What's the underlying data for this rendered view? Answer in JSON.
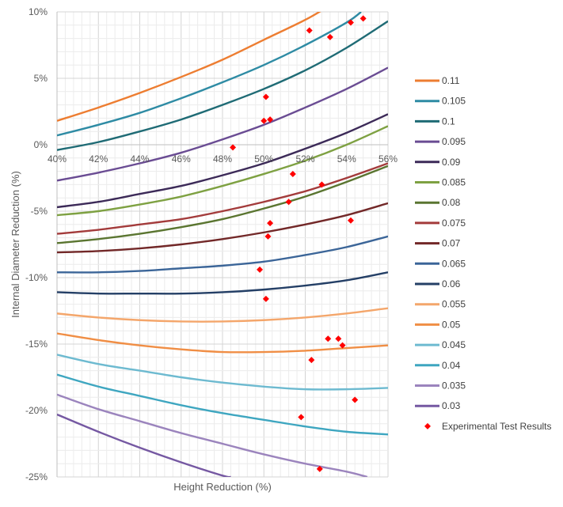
{
  "chart_data": {
    "type": "line",
    "title": "",
    "xlabel": "Height Reduction (%)",
    "ylabel": "Internal Diameter Reduction (%)",
    "xlim": [
      40,
      56
    ],
    "ylim": [
      -25,
      10
    ],
    "x_ticks": [
      "40%",
      "42%",
      "44%",
      "46%",
      "48%",
      "50%",
      "52%",
      "54%",
      "56%"
    ],
    "x_tick_values": [
      40,
      42,
      44,
      46,
      48,
      50,
      52,
      54,
      56
    ],
    "y_ticks": [
      "10%",
      "5%",
      "0%",
      "-5%",
      "-10%",
      "-15%",
      "-20%",
      "-25%"
    ],
    "y_tick_values": [
      10,
      5,
      0,
      -5,
      -10,
      -15,
      -20,
      -25
    ],
    "grid": true,
    "legend_position": "right",
    "series": [
      {
        "name": "0.11",
        "color": "#ED7D31",
        "x": [
          40,
          42,
          44,
          46,
          48,
          50,
          52,
          53.0
        ],
        "y": [
          1.8,
          2.8,
          3.9,
          5.1,
          6.4,
          7.9,
          9.4,
          10.3
        ]
      },
      {
        "name": "0.105",
        "color": "#2E8BA4",
        "x": [
          40,
          42,
          44,
          46,
          48,
          50,
          52,
          54,
          54.7
        ],
        "y": [
          0.7,
          1.5,
          2.4,
          3.5,
          4.7,
          6.0,
          7.5,
          9.2,
          10.0
        ]
      },
      {
        "name": "0.1",
        "color": "#1F6B75",
        "x": [
          40,
          42,
          44,
          46,
          48,
          50,
          52,
          54,
          56
        ],
        "y": [
          -0.4,
          0.2,
          1.0,
          1.9,
          3.0,
          4.2,
          5.6,
          7.3,
          9.3
        ]
      },
      {
        "name": "0.095",
        "color": "#6A4C93",
        "x": [
          40,
          42,
          44,
          46,
          48,
          50,
          52,
          54,
          56
        ],
        "y": [
          -2.7,
          -2.1,
          -1.4,
          -0.6,
          0.4,
          1.5,
          2.8,
          4.2,
          5.8
        ]
      },
      {
        "name": "0.09",
        "color": "#3C2A58",
        "x": [
          40,
          42,
          44,
          46,
          48,
          50,
          52,
          54,
          56
        ],
        "y": [
          -4.7,
          -4.3,
          -3.7,
          -3.1,
          -2.3,
          -1.4,
          -0.3,
          0.9,
          2.3
        ]
      },
      {
        "name": "0.085",
        "color": "#7EA142",
        "x": [
          40,
          42,
          44,
          46,
          48,
          50,
          52,
          54,
          56
        ],
        "y": [
          -5.3,
          -5.0,
          -4.5,
          -3.9,
          -3.1,
          -2.2,
          -1.2,
          0.0,
          1.4
        ]
      },
      {
        "name": "0.08",
        "color": "#5A7530",
        "x": [
          40,
          42,
          44,
          46,
          48,
          50,
          52,
          54,
          56
        ],
        "y": [
          -7.4,
          -7.1,
          -6.7,
          -6.2,
          -5.6,
          -4.8,
          -3.9,
          -2.8,
          -1.6
        ]
      },
      {
        "name": "0.075",
        "color": "#A33B3B",
        "x": [
          40,
          42,
          44,
          46,
          48,
          50,
          52,
          54,
          56
        ],
        "y": [
          -6.7,
          -6.4,
          -6.0,
          -5.6,
          -5.0,
          -4.3,
          -3.5,
          -2.5,
          -1.4
        ]
      },
      {
        "name": "0.07",
        "color": "#722828",
        "x": [
          40,
          42,
          44,
          46,
          48,
          50,
          52,
          54,
          56
        ],
        "y": [
          -8.1,
          -8.0,
          -7.8,
          -7.5,
          -7.1,
          -6.6,
          -6.0,
          -5.3,
          -4.4
        ]
      },
      {
        "name": "0.065",
        "color": "#3B6598",
        "x": [
          40,
          42,
          44,
          46,
          48,
          50,
          52,
          54,
          56
        ],
        "y": [
          -9.6,
          -9.6,
          -9.5,
          -9.3,
          -9.1,
          -8.8,
          -8.3,
          -7.7,
          -6.9
        ]
      },
      {
        "name": "0.06",
        "color": "#243F66",
        "x": [
          40,
          42,
          44,
          46,
          48,
          50,
          52,
          54,
          56
        ],
        "y": [
          -11.1,
          -11.2,
          -11.2,
          -11.2,
          -11.1,
          -10.9,
          -10.6,
          -10.2,
          -9.6
        ]
      },
      {
        "name": "0.055",
        "color": "#F4A66B",
        "x": [
          40,
          42,
          44,
          46,
          48,
          50,
          52,
          54,
          56
        ],
        "y": [
          -12.7,
          -13.0,
          -13.2,
          -13.3,
          -13.3,
          -13.2,
          -13.0,
          -12.7,
          -12.3
        ]
      },
      {
        "name": "0.05",
        "color": "#F08E45",
        "x": [
          40,
          42,
          44,
          46,
          48,
          50,
          52,
          54,
          56
        ],
        "y": [
          -14.2,
          -14.7,
          -15.1,
          -15.4,
          -15.6,
          -15.6,
          -15.5,
          -15.3,
          -15.1
        ]
      },
      {
        "name": "0.045",
        "color": "#6DBAD0",
        "x": [
          40,
          42,
          44,
          46,
          48,
          50,
          52,
          54,
          56
        ],
        "y": [
          -15.8,
          -16.5,
          -17.0,
          -17.5,
          -17.9,
          -18.2,
          -18.4,
          -18.4,
          -18.3
        ]
      },
      {
        "name": "0.04",
        "color": "#3EA6C0",
        "x": [
          40,
          42,
          44,
          46,
          48,
          50,
          52,
          54,
          56
        ],
        "y": [
          -17.3,
          -18.2,
          -18.9,
          -19.6,
          -20.2,
          -20.7,
          -21.2,
          -21.6,
          -21.8
        ]
      },
      {
        "name": "0.035",
        "color": "#9B84BD",
        "x": [
          40,
          42,
          44,
          46,
          48,
          50,
          52,
          54,
          55.0
        ],
        "y": [
          -18.8,
          -19.9,
          -20.8,
          -21.7,
          -22.5,
          -23.3,
          -24.0,
          -24.6,
          -25.0
        ]
      },
      {
        "name": "0.03",
        "color": "#7558A2",
        "x": [
          40,
          42,
          44,
          46,
          48,
          48.4
        ],
        "y": [
          -20.3,
          -21.6,
          -22.8,
          -23.9,
          -24.9,
          -25.0
        ]
      }
    ],
    "scatter": {
      "name": "Experimental Test Results",
      "color": "#FF0000",
      "points": [
        {
          "x": 52.2,
          "y": 8.6
        },
        {
          "x": 53.2,
          "y": 8.1
        },
        {
          "x": 54.2,
          "y": 9.2
        },
        {
          "x": 54.8,
          "y": 9.5
        },
        {
          "x": 50.1,
          "y": 3.6
        },
        {
          "x": 50.0,
          "y": 1.8
        },
        {
          "x": 50.3,
          "y": 1.9
        },
        {
          "x": 48.5,
          "y": -0.2
        },
        {
          "x": 51.4,
          "y": -2.2
        },
        {
          "x": 52.8,
          "y": -3.0
        },
        {
          "x": 51.2,
          "y": -4.3
        },
        {
          "x": 50.3,
          "y": -5.9
        },
        {
          "x": 54.2,
          "y": -5.7
        },
        {
          "x": 50.2,
          "y": -6.9
        },
        {
          "x": 49.8,
          "y": -9.4
        },
        {
          "x": 50.1,
          "y": -11.6
        },
        {
          "x": 53.1,
          "y": -14.6
        },
        {
          "x": 53.6,
          "y": -14.6
        },
        {
          "x": 53.8,
          "y": -15.1
        },
        {
          "x": 52.3,
          "y": -16.2
        },
        {
          "x": 54.4,
          "y": -19.2
        },
        {
          "x": 51.8,
          "y": -20.5
        },
        {
          "x": 52.7,
          "y": -24.4
        }
      ]
    }
  }
}
